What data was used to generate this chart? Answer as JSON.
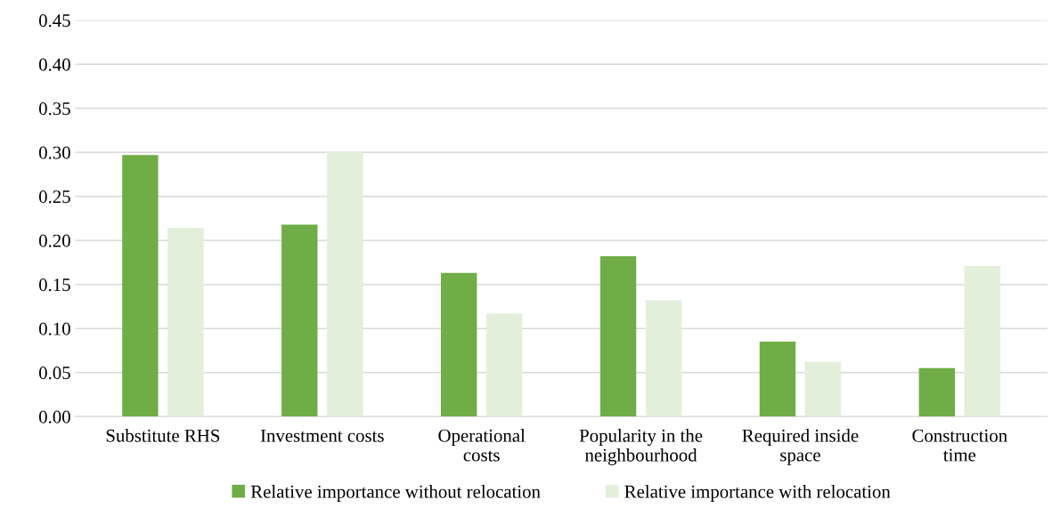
{
  "chart_data": {
    "type": "bar",
    "categories": [
      "Substitute RHS",
      "Investment costs",
      "Operational\ncosts",
      "Popularity in the\nneighbourhood",
      "Required inside\nspace",
      "Construction\ntime"
    ],
    "series": [
      {
        "name": "Relative importance without relocation",
        "color": "#70ad47",
        "values": [
          0.297,
          0.218,
          0.163,
          0.182,
          0.085,
          0.055
        ]
      },
      {
        "name": "Relative importance with relocation",
        "color": "#e2efda",
        "values": [
          0.214,
          0.3,
          0.117,
          0.132,
          0.062,
          0.171
        ]
      }
    ],
    "ylim": [
      0,
      0.45
    ],
    "yticks": [
      {
        "value": 0,
        "label": "0.00"
      },
      {
        "value": 0.05,
        "label": "0.05"
      },
      {
        "value": 0.1,
        "label": "0.10"
      },
      {
        "value": 0.15,
        "label": "0.15"
      },
      {
        "value": 0.2,
        "label": "0.20"
      },
      {
        "value": 0.25,
        "label": "0.25"
      },
      {
        "value": 0.3,
        "label": "0.30"
      },
      {
        "value": 0.35,
        "label": "0.35"
      },
      {
        "value": 0.4,
        "label": "0.40"
      },
      {
        "value": 0.45,
        "label": "0.45"
      }
    ],
    "grid": "y",
    "legend": "bottom"
  }
}
